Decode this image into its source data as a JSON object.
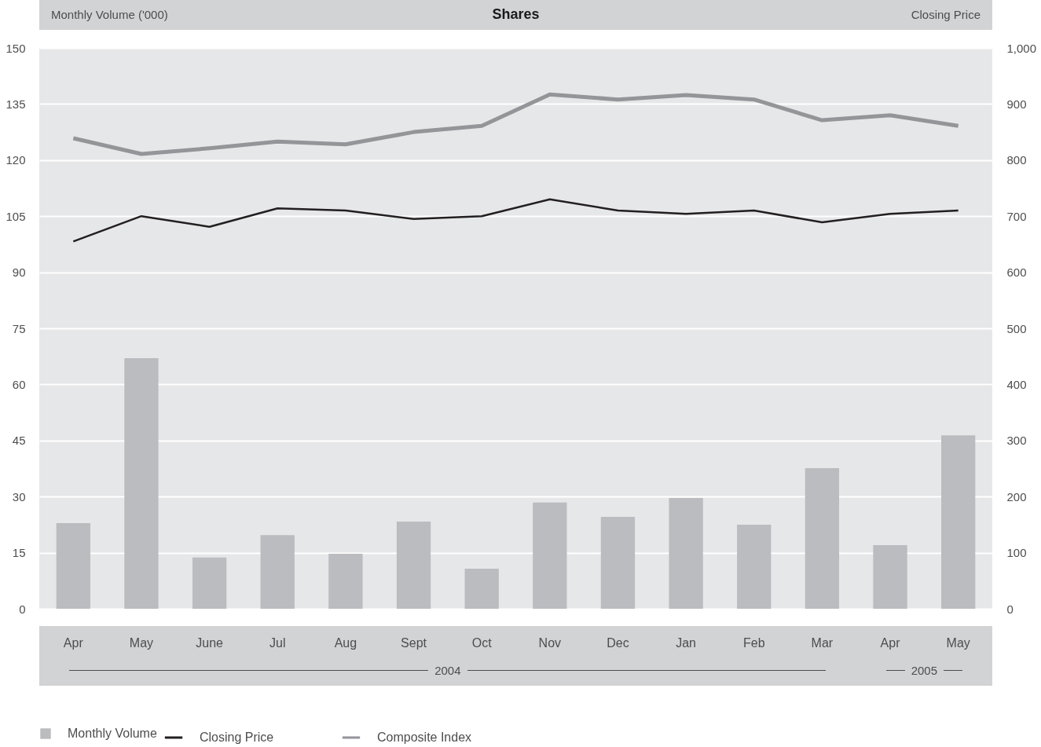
{
  "chart_data": {
    "type": "bar",
    "title": "Shares",
    "ylabel": "Monthly Volume ('000)",
    "y2label": "Closing Price",
    "categories": [
      "Apr",
      "May",
      "June",
      "Jul",
      "Aug",
      "Sept",
      "Oct",
      "Nov",
      "Dec",
      "Jan",
      "Feb",
      "Mar",
      "Apr",
      "May"
    ],
    "series": [
      {
        "name": "Closing Price",
        "type": "line",
        "axis": "y2",
        "color": "#231f20",
        "values": [
          655,
          700,
          681,
          714,
          710,
          695,
          700,
          730,
          710,
          704,
          710,
          689,
          704,
          710
        ]
      },
      {
        "name": "Composite Index",
        "type": "line",
        "axis": "y2",
        "color": "#939598",
        "values": [
          839,
          811,
          821,
          833,
          828,
          850,
          861,
          917,
          908,
          916,
          908,
          871,
          880,
          861
        ]
      },
      {
        "name": "Monthly Volume",
        "axis": "y",
        "color": "#bbbcbf",
        "values": [
          22.9,
          67.0,
          13.7,
          19.7,
          14.7,
          23.3,
          10.7,
          28.4,
          24.6,
          29.6,
          22.5,
          37.6,
          17.0,
          46.4
        ]
      }
    ],
    "ylim": [
      0,
      150
    ],
    "yticks": [
      0,
      15,
      30,
      45,
      60,
      75,
      90,
      105,
      120,
      135,
      150
    ],
    "y2lim": [
      0,
      1000
    ],
    "y2ticks": [
      0,
      100,
      200,
      300,
      400,
      500,
      600,
      700,
      800,
      900,
      {
        "value": 1000,
        "label": "1,000"
      }
    ],
    "grid": "y",
    "legend": "bottom",
    "line_style": "solid",
    "annotations": [
      "2004",
      "2005"
    ]
  }
}
